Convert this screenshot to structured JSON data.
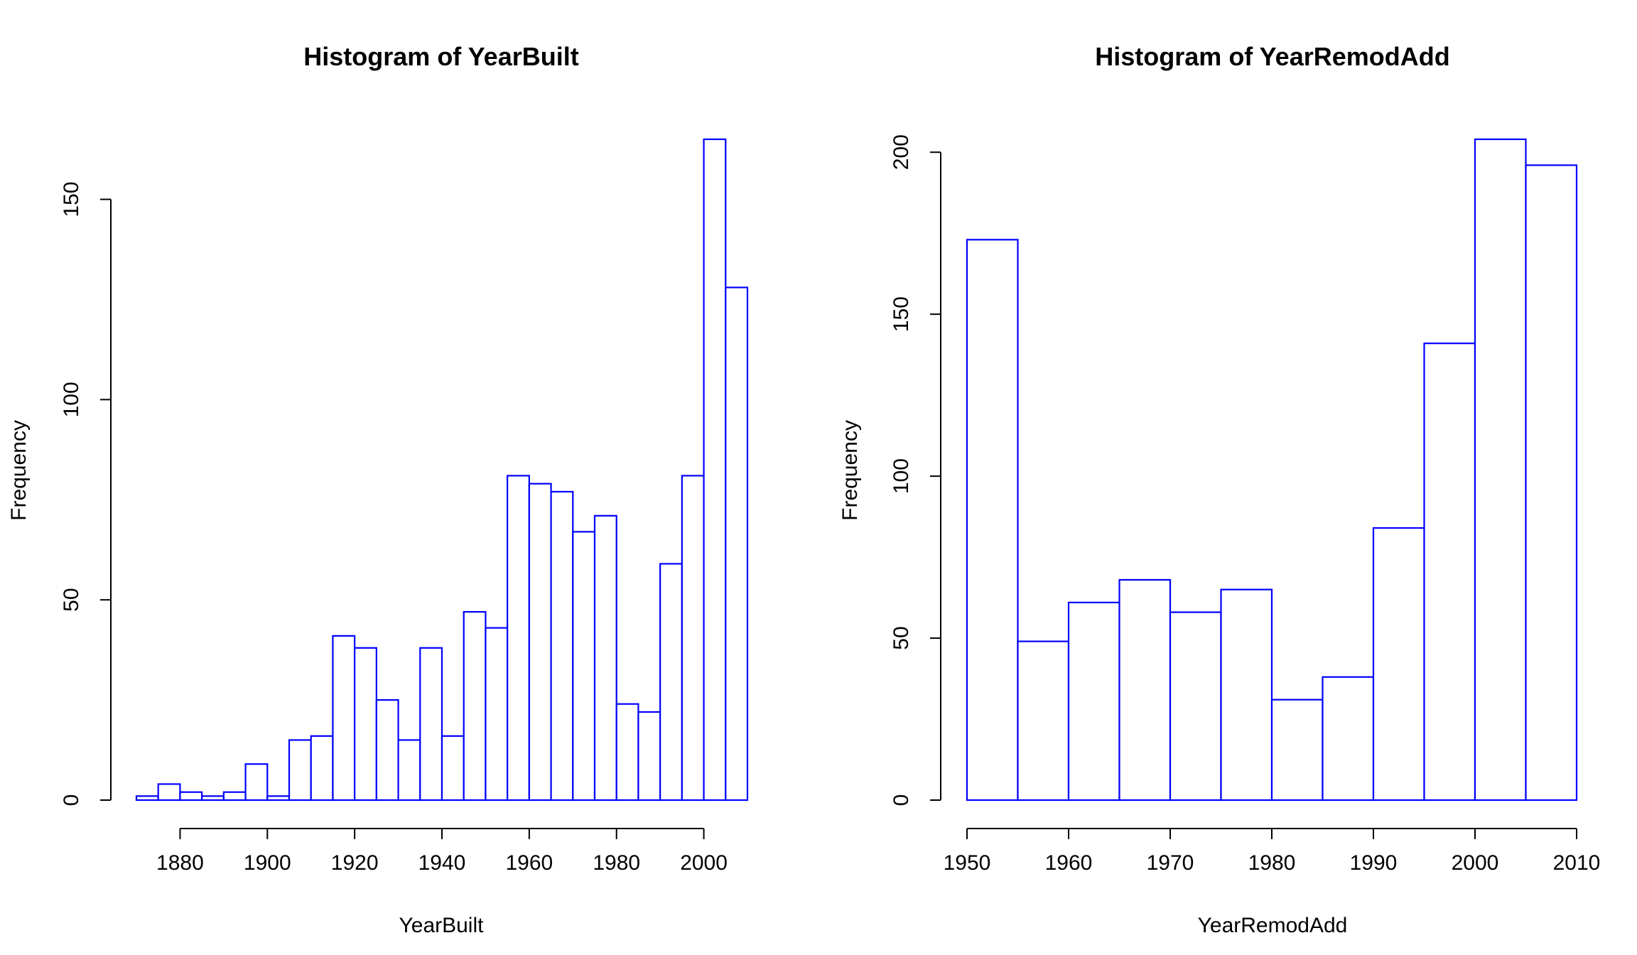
{
  "chart_data": [
    {
      "type": "bar",
      "title": "Histogram of  YearBuilt",
      "xlabel": "YearBuilt",
      "ylabel": "Frequency",
      "bar_color": "#0000ff",
      "bin_edges": [
        1870,
        1875,
        1880,
        1885,
        1890,
        1895,
        1900,
        1905,
        1910,
        1915,
        1920,
        1925,
        1930,
        1935,
        1940,
        1945,
        1950,
        1955,
        1960,
        1965,
        1970,
        1975,
        1980,
        1985,
        1990,
        1995,
        2000,
        2005,
        2010
      ],
      "values": [
        1,
        4,
        2,
        1,
        2,
        9,
        1,
        15,
        16,
        41,
        38,
        25,
        15,
        38,
        16,
        47,
        43,
        81,
        79,
        77,
        67,
        71,
        24,
        22,
        59,
        81,
        165,
        128
      ],
      "xticks": [
        1880,
        1900,
        1920,
        1940,
        1960,
        1980,
        2000
      ],
      "yticks": [
        0,
        50,
        100,
        150
      ],
      "xlim": [
        1870,
        2010
      ],
      "ylim": [
        0,
        165
      ],
      "grid": false
    },
    {
      "type": "bar",
      "title": "Histogram of  YearRemodAdd",
      "xlabel": "YearRemodAdd",
      "ylabel": "Frequency",
      "bar_color": "#0000ff",
      "bin_edges": [
        1950,
        1955,
        1960,
        1965,
        1970,
        1975,
        1980,
        1985,
        1990,
        1995,
        2000,
        2005,
        2010
      ],
      "values": [
        173,
        49,
        61,
        68,
        58,
        65,
        31,
        38,
        84,
        141,
        204,
        196
      ],
      "xticks": [
        1950,
        1960,
        1970,
        1980,
        1990,
        2000,
        2010
      ],
      "yticks": [
        0,
        50,
        100,
        150,
        200
      ],
      "xlim": [
        1950,
        2010
      ],
      "ylim": [
        0,
        204
      ],
      "grid": false
    }
  ]
}
